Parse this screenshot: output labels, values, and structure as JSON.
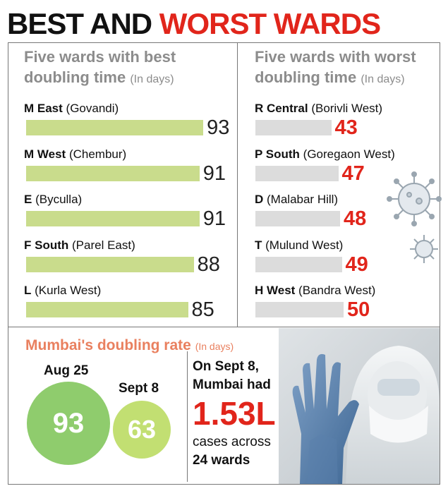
{
  "headline": {
    "part1": "BEST AND",
    "part2": "WORST WARDS"
  },
  "colors": {
    "red": "#e1251b",
    "green_bar": "#c9dc8c",
    "grey_bar": "#dcdcdc",
    "circle_big": "#8fcc6d",
    "circle_small": "#c2df72",
    "orange_title": "#e9805f"
  },
  "best": {
    "title_line1": "Five wards with best",
    "title_line2": "doubling time",
    "unit": "(In days)",
    "wards": [
      {
        "name": "M East",
        "area": "(Govandi)",
        "value": 93
      },
      {
        "name": "M West",
        "area": "(Chembur)",
        "value": 91
      },
      {
        "name": "E",
        "area": "(Byculla)",
        "value": 91
      },
      {
        "name": "F South",
        "area": "(Parel East)",
        "value": 88
      },
      {
        "name": "L",
        "area": "(Kurla West)",
        "value": 85
      }
    ]
  },
  "worst": {
    "title_line1": "Five wards with worst",
    "title_line2": "doubling time",
    "unit": "(In days)",
    "wards": [
      {
        "name": "R Central",
        "area": "(Borivli West)",
        "value": 43
      },
      {
        "name": "P South",
        "area": "(Goregaon West)",
        "value": 47
      },
      {
        "name": "D",
        "area": "(Malabar Hill)",
        "value": 48
      },
      {
        "name": "T",
        "area": "(Mulund West)",
        "value": 49
      },
      {
        "name": "H West",
        "area": "(Bandra West)",
        "value": 50
      }
    ]
  },
  "mumbai": {
    "title": "Mumbai's doubling rate",
    "unit": "(In days)",
    "dates": [
      {
        "label": "Aug 25",
        "value": 93
      },
      {
        "label": "Sept 8",
        "value": 63
      }
    ],
    "fact_line1": "On Sept 8,",
    "fact_line2": "Mumbai had",
    "fact_big": "1.53L",
    "fact_line3": "cases across",
    "fact_line4": "24 wards"
  },
  "chart_data": [
    {
      "type": "bar",
      "title": "Five wards with best doubling time (In days)",
      "categories": [
        "M East (Govandi)",
        "M West (Chembur)",
        "E (Byculla)",
        "F South (Parel East)",
        "L (Kurla West)"
      ],
      "values": [
        93,
        91,
        91,
        88,
        85
      ]
    },
    {
      "type": "bar",
      "title": "Five wards with worst doubling time (In days)",
      "categories": [
        "R Central (Borivli West)",
        "P South (Goregaon West)",
        "D (Malabar Hill)",
        "T (Mulund West)",
        "H West (Bandra West)"
      ],
      "values": [
        43,
        47,
        48,
        49,
        50
      ]
    },
    {
      "type": "bar",
      "title": "Mumbai's doubling rate (In days)",
      "categories": [
        "Aug 25",
        "Sept 8"
      ],
      "values": [
        93,
        63
      ]
    }
  ]
}
